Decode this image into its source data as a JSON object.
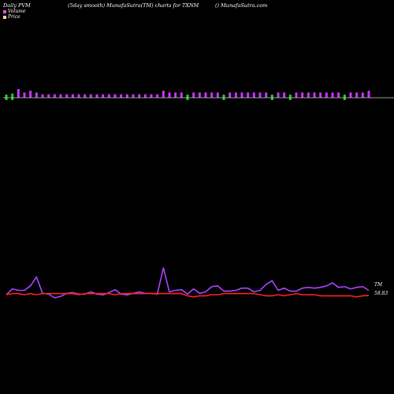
{
  "header": {
    "left": "Daily PVM",
    "middle": "(5day smooth) MunafaSutra(TM) charts for TXNM",
    "right": "() MunafaSutra.com"
  },
  "legend": {
    "volume": "Volume",
    "price": "Price"
  },
  "labels": {
    "indicator": "TM",
    "last_price": "58.83"
  },
  "colors": {
    "background": "#000000",
    "volume_up": "#cc33ff",
    "volume_down": "#22cc22",
    "volume_legend": "#ff44ff",
    "price_legend": "#ffcc99",
    "indicator_line": "#aa44ff",
    "price_line": "#ff2222",
    "baseline": "#cccccc"
  },
  "chart_data": [
    {
      "type": "bar",
      "series": [
        {
          "name": "Volume",
          "values": [
            3,
            4,
            5,
            3,
            4,
            3,
            2,
            2,
            2,
            2,
            2,
            2,
            2,
            2,
            2,
            2,
            2,
            2,
            2,
            2,
            2,
            2,
            2,
            2,
            2,
            2,
            4,
            3,
            3,
            3,
            3,
            3,
            3,
            3,
            3,
            3,
            3,
            3,
            3,
            3,
            3,
            3,
            3,
            3,
            3,
            3,
            3,
            3,
            3,
            3,
            3,
            3,
            3,
            3,
            3,
            3,
            3,
            3,
            3,
            3,
            4
          ]
        }
      ],
      "direction": [
        "d",
        "d",
        "u",
        "u",
        "u",
        "u",
        "u",
        "u",
        "u",
        "u",
        "u",
        "u",
        "u",
        "u",
        "u",
        "u",
        "u",
        "u",
        "u",
        "u",
        "u",
        "u",
        "u",
        "u",
        "u",
        "u",
        "u",
        "u",
        "u",
        "u",
        "d",
        "u",
        "u",
        "u",
        "u",
        "u",
        "d",
        "u",
        "u",
        "u",
        "u",
        "u",
        "u",
        "u",
        "d",
        "u",
        "u",
        "d",
        "u",
        "u",
        "u",
        "u",
        "u",
        "u",
        "u",
        "u",
        "d",
        "u",
        "u",
        "u",
        "u"
      ]
    },
    {
      "type": "line",
      "series": [
        {
          "name": "TM",
          "values": [
            54,
            62,
            60,
            60,
            66,
            78,
            56,
            55,
            50,
            52,
            56,
            57,
            55,
            55,
            58,
            55,
            54,
            57,
            61,
            55,
            54,
            56,
            58,
            56,
            56,
            55,
            90,
            58,
            60,
            61,
            55,
            62,
            56,
            58,
            65,
            66,
            59,
            59,
            60,
            63,
            63,
            58,
            60,
            68,
            73,
            60,
            63,
            59,
            59,
            63,
            64,
            63,
            64,
            66,
            70,
            64,
            65,
            62,
            64,
            65,
            60
          ]
        },
        {
          "name": "Price",
          "values": [
            58.9,
            59.0,
            59.0,
            58.9,
            59.0,
            58.9,
            59.0,
            59.0,
            59.0,
            59.0,
            59.0,
            59.0,
            58.9,
            59.0,
            59.0,
            59.0,
            59.0,
            59.0,
            58.9,
            59.0,
            59.0,
            59.0,
            59.0,
            59.0,
            59.0,
            59.0,
            59.0,
            59.0,
            59.0,
            59.0,
            58.8,
            58.7,
            58.8,
            58.8,
            58.9,
            58.9,
            59.0,
            59.0,
            59.0,
            59.0,
            59.0,
            59.0,
            58.9,
            58.8,
            58.8,
            58.9,
            58.8,
            58.9,
            59.0,
            58.9,
            58.9,
            58.9,
            58.8,
            58.8,
            58.8,
            58.8,
            58.8,
            58.8,
            58.7,
            58.8,
            58.83
          ]
        }
      ]
    }
  ]
}
